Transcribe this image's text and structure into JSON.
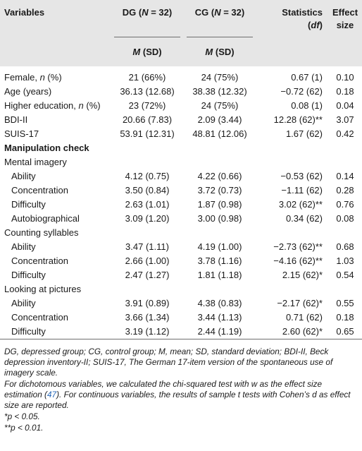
{
  "header": {
    "variables": "Variables",
    "dg_prefix": "DG (",
    "dg_suffix": " = 32)",
    "cg_prefix": "CG (",
    "cg_suffix": " = 32)",
    "n_symbol": "N",
    "statistics": "Statistics",
    "df_open": "(",
    "df": "df",
    "df_close": ")",
    "effect_line1": "Effect",
    "effect_line2": "size",
    "m_symbol": "M",
    "sd_label": " (SD)"
  },
  "rows": [
    {
      "label": "Female, ",
      "italic": "n",
      "label_rest": " (%)",
      "dg": "21 (66%)",
      "cg": "24 (75%)",
      "stat": "0.67 (1)",
      "effect": "0.10"
    },
    {
      "label": "Age (years)",
      "dg": "36.13 (12.68)",
      "cg": "38.38 (12.32)",
      "stat": "−0.72 (62)",
      "effect": "0.18"
    },
    {
      "label": "Higher education, ",
      "italic": "n",
      "label_rest": " (%)",
      "dg": "23 (72%)",
      "cg": "24 (75%)",
      "stat": "0.08 (1)",
      "effect": "0.04"
    },
    {
      "label": "BDI-II",
      "dg": "20.66 (7.83)",
      "cg": "2.09 (3.44)",
      "stat": "12.28 (62)**",
      "effect": "3.07"
    },
    {
      "label": "SUIS-17",
      "dg": "53.91 (12.31)",
      "cg": "48.81 (12.06)",
      "stat": "1.67 (62)",
      "effect": "0.42"
    },
    {
      "label": "Manipulation check",
      "bold": true
    },
    {
      "label": "Mental imagery"
    },
    {
      "label": "Ability",
      "indent": true,
      "dg": "4.12 (0.75)",
      "cg": "4.22 (0.66)",
      "stat": "−0.53 (62)",
      "effect": "0.14"
    },
    {
      "label": "Concentration",
      "indent": true,
      "dg": "3.50 (0.84)",
      "cg": "3.72 (0.73)",
      "stat": "−1.11 (62)",
      "effect": "0.28"
    },
    {
      "label": "Difficulty",
      "indent": true,
      "dg": "2.63 (1.01)",
      "cg": "1.87 (0.98)",
      "stat": "3.02 (62)**",
      "effect": "0.76"
    },
    {
      "label": "Autobiographical",
      "indent": true,
      "dg": "3.09 (1.20)",
      "cg": "3.00 (0.98)",
      "stat": "0.34 (62)",
      "effect": "0.08"
    },
    {
      "label": "Counting syllables"
    },
    {
      "label": "Ability",
      "indent": true,
      "dg": "3.47 (1.11)",
      "cg": "4.19 (1.00)",
      "stat": "−2.73 (62)**",
      "effect": "0.68"
    },
    {
      "label": "Concentration",
      "indent": true,
      "dg": "2.66 (1.00)",
      "cg": "3.78 (1.16)",
      "stat": "−4.16 (62)**",
      "effect": "1.03"
    },
    {
      "label": "Difficulty",
      "indent": true,
      "dg": "2.47 (1.27)",
      "cg": "1.81 (1.18)",
      "stat": "2.15 (62)*",
      "effect": "0.54"
    },
    {
      "label": "Looking at pictures"
    },
    {
      "label": "Ability",
      "indent": true,
      "dg": "3.91 (0.89)",
      "cg": "4.38 (0.83)",
      "stat": "−2.17 (62)*",
      "effect": "0.55"
    },
    {
      "label": "Concentration",
      "indent": true,
      "dg": "3.66 (1.34)",
      "cg": "3.44 (1.13)",
      "stat": "0.71 (62)",
      "effect": "0.18"
    },
    {
      "label": "Difficulty",
      "indent": true,
      "dg": "3.19 (1.12)",
      "cg": "2.44 (1.19)",
      "stat": "2.60 (62)*",
      "effect": "0.65"
    }
  ],
  "footnotes": {
    "abbrev": "DG, depressed group; CG, control group; M, mean; SD, standard deviation; BDI-II, Beck depression inventory-II; SUIS-17, The German 17-item version of the spontaneous use of imagery scale.",
    "method_a": "For dichotomous variables, we calculated the chi-squared test with w as the effect size estimation (",
    "method_ref": "47",
    "method_b": "). For continuous variables, the results of sample t tests with Cohen’s d as effect size are reported.",
    "p05": "*p < 0.05.",
    "p01": "**p < 0.01."
  },
  "colors": {
    "header_bg": "#e6e6e6",
    "rule": "#6f6f6f",
    "link": "#2a6ab8"
  }
}
